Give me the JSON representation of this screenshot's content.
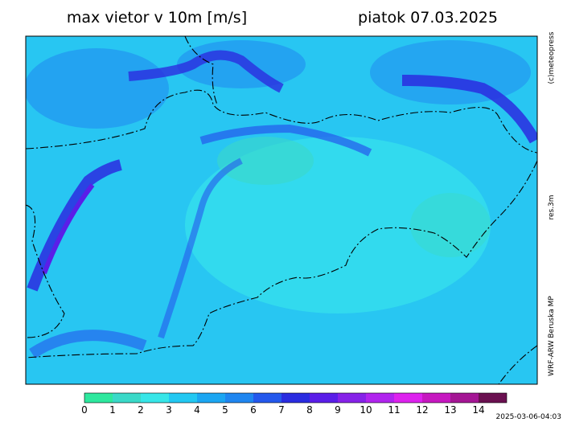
{
  "header": {
    "title": "max vietor v 10m [m/s]",
    "date": "piatok 07.03.2025"
  },
  "side": {
    "copyright": "(c)meteopress",
    "resolution": "res.3m",
    "model": "WRF-ARW Beruska MP"
  },
  "footer": {
    "timestamp": "2025-03-06-04:03"
  },
  "colorbar": {
    "levels": [
      0,
      1,
      2,
      3,
      4,
      5,
      6,
      7,
      8,
      9,
      10,
      11,
      12,
      13,
      14
    ],
    "colors": [
      "#2ee89e",
      "#3ad9c8",
      "#37e6e8",
      "#22c8f2",
      "#1ba6f2",
      "#1f86f0",
      "#2458ec",
      "#2a2ce0",
      "#5a1ee8",
      "#8622e8",
      "#b024ee",
      "#dd22ee",
      "#c618c0",
      "#a41694",
      "#6a1050"
    ]
  }
}
